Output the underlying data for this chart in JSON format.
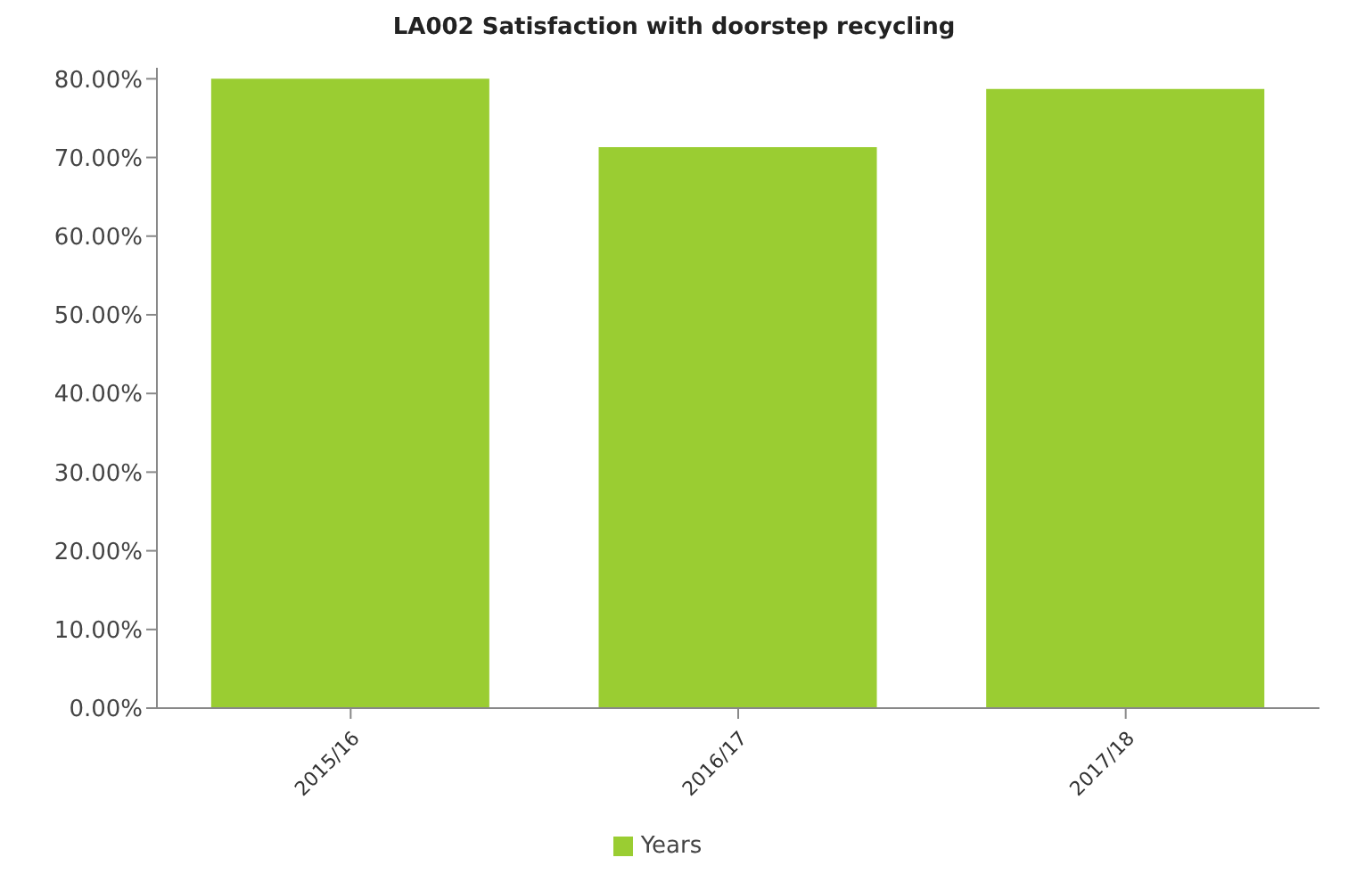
{
  "chart_data": {
    "type": "bar",
    "title": "LA002 Satisfaction with doorstep recycling",
    "categories": [
      "2015/16",
      "2016/17",
      "2017/18"
    ],
    "series": [
      {
        "name": "Years",
        "color": "#9acd32",
        "values": [
          80,
          71.3,
          78.7
        ]
      }
    ],
    "ylim": [
      0,
      81.4
    ],
    "yticks": [
      {
        "value": 0,
        "label": "0.00%"
      },
      {
        "value": 10,
        "label": "10.00%"
      },
      {
        "value": 20,
        "label": "20.00%"
      },
      {
        "value": 30,
        "label": "30.00%"
      },
      {
        "value": 40,
        "label": "40.00%"
      },
      {
        "value": 50,
        "label": "50.00%"
      },
      {
        "value": 60,
        "label": "60.00%"
      },
      {
        "value": 70,
        "label": "70.00%"
      },
      {
        "value": 80,
        "label": "80.00%"
      }
    ],
    "grid": false,
    "legend": "bottom"
  }
}
